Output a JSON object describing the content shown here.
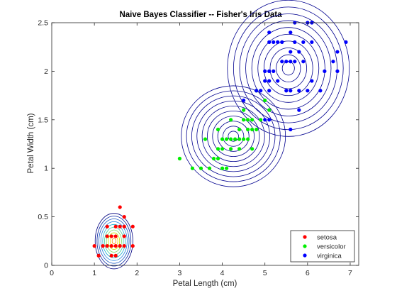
{
  "chart_data": {
    "type": "scatter",
    "title": "Naive Bayes Classifier -- Fisher's Iris Data",
    "xlabel": "Petal Length (cm)",
    "ylabel": "Petal Width (cm)",
    "xlim": [
      0,
      7.2
    ],
    "ylim": [
      0,
      2.5
    ],
    "xticks": [
      "0",
      "1",
      "2",
      "3",
      "4",
      "5",
      "6",
      "7"
    ],
    "yticks": [
      "0",
      "0.5",
      "1",
      "1.5",
      "2",
      "2.5"
    ],
    "grid": false,
    "legend_position": "bottom-right",
    "series": [
      {
        "name": "setosa",
        "color": "#ff0000",
        "points": [
          [
            1.0,
            0.2
          ],
          [
            1.1,
            0.1
          ],
          [
            1.2,
            0.2
          ],
          [
            1.3,
            0.2
          ],
          [
            1.3,
            0.3
          ],
          [
            1.3,
            0.4
          ],
          [
            1.4,
            0.1
          ],
          [
            1.4,
            0.2
          ],
          [
            1.4,
            0.3
          ],
          [
            1.5,
            0.1
          ],
          [
            1.5,
            0.2
          ],
          [
            1.5,
            0.3
          ],
          [
            1.5,
            0.4
          ],
          [
            1.6,
            0.2
          ],
          [
            1.6,
            0.4
          ],
          [
            1.6,
            0.6
          ],
          [
            1.7,
            0.2
          ],
          [
            1.7,
            0.3
          ],
          [
            1.7,
            0.4
          ],
          [
            1.7,
            0.5
          ],
          [
            1.9,
            0.2
          ],
          [
            1.9,
            0.4
          ]
        ],
        "contour": {
          "center": [
            1.46,
            0.25
          ],
          "std": [
            0.17,
            0.11
          ]
        }
      },
      {
        "name": "versicolor",
        "color": "#00ee00",
        "points": [
          [
            3.0,
            1.1
          ],
          [
            3.3,
            1.0
          ],
          [
            3.5,
            1.0
          ],
          [
            3.6,
            1.3
          ],
          [
            3.7,
            1.0
          ],
          [
            3.8,
            1.1
          ],
          [
            3.9,
            1.1
          ],
          [
            3.9,
            1.2
          ],
          [
            3.9,
            1.4
          ],
          [
            4.0,
            1.0
          ],
          [
            4.0,
            1.2
          ],
          [
            4.0,
            1.3
          ],
          [
            4.1,
            1.0
          ],
          [
            4.1,
            1.3
          ],
          [
            4.2,
            1.2
          ],
          [
            4.2,
            1.3
          ],
          [
            4.2,
            1.5
          ],
          [
            4.3,
            1.3
          ],
          [
            4.4,
            1.2
          ],
          [
            4.4,
            1.3
          ],
          [
            4.4,
            1.4
          ],
          [
            4.5,
            1.3
          ],
          [
            4.5,
            1.5
          ],
          [
            4.5,
            1.6
          ],
          [
            4.6,
            1.3
          ],
          [
            4.6,
            1.4
          ],
          [
            4.6,
            1.5
          ],
          [
            4.7,
            1.2
          ],
          [
            4.7,
            1.4
          ],
          [
            4.7,
            1.5
          ],
          [
            4.8,
            1.4
          ],
          [
            4.8,
            1.8
          ],
          [
            4.9,
            1.5
          ],
          [
            5.0,
            1.7
          ],
          [
            5.1,
            1.6
          ]
        ],
        "contour": {
          "center": [
            4.26,
            1.33
          ],
          "std": [
            0.47,
            0.2
          ]
        }
      },
      {
        "name": "virginica",
        "color": "#0000ff",
        "points": [
          [
            4.5,
            1.7
          ],
          [
            4.8,
            1.8
          ],
          [
            4.9,
            1.8
          ],
          [
            5.0,
            1.5
          ],
          [
            5.0,
            1.9
          ],
          [
            5.0,
            2.0
          ],
          [
            5.1,
            1.5
          ],
          [
            5.1,
            1.8
          ],
          [
            5.1,
            1.9
          ],
          [
            5.1,
            2.0
          ],
          [
            5.1,
            2.3
          ],
          [
            5.1,
            2.4
          ],
          [
            5.2,
            2.0
          ],
          [
            5.2,
            2.3
          ],
          [
            5.3,
            1.9
          ],
          [
            5.3,
            2.3
          ],
          [
            5.4,
            2.1
          ],
          [
            5.4,
            2.3
          ],
          [
            5.5,
            1.8
          ],
          [
            5.5,
            2.1
          ],
          [
            5.6,
            1.4
          ],
          [
            5.6,
            1.8
          ],
          [
            5.6,
            2.1
          ],
          [
            5.6,
            2.2
          ],
          [
            5.6,
            2.4
          ],
          [
            5.7,
            2.1
          ],
          [
            5.7,
            2.3
          ],
          [
            5.7,
            2.5
          ],
          [
            5.8,
            1.6
          ],
          [
            5.8,
            1.8
          ],
          [
            5.8,
            2.2
          ],
          [
            5.9,
            2.1
          ],
          [
            5.9,
            2.3
          ],
          [
            6.0,
            1.8
          ],
          [
            6.0,
            2.5
          ],
          [
            6.1,
            1.9
          ],
          [
            6.1,
            2.3
          ],
          [
            6.1,
            2.5
          ],
          [
            6.3,
            1.8
          ],
          [
            6.4,
            2.0
          ],
          [
            6.6,
            2.1
          ],
          [
            6.7,
            2.0
          ],
          [
            6.7,
            2.2
          ],
          [
            6.9,
            2.3
          ]
        ],
        "contour": {
          "center": [
            5.55,
            2.03
          ],
          "std": [
            0.55,
            0.27
          ]
        }
      }
    ]
  }
}
